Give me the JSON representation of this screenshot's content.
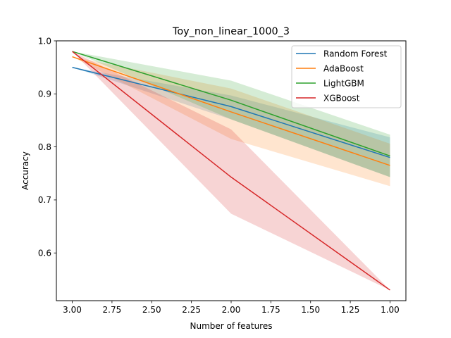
{
  "chart_data": {
    "type": "line",
    "title": "Toy_non_linear_1000_3",
    "xlabel": "Number of features",
    "ylabel": "Accuracy",
    "x": [
      3,
      2,
      1
    ],
    "xlim": [
      3.1,
      0.9
    ],
    "ylim": [
      0.51,
      1.0
    ],
    "xticks": [
      3.0,
      2.75,
      2.5,
      2.25,
      2.0,
      1.75,
      1.5,
      1.25,
      1.0
    ],
    "xtick_labels": [
      "3.00",
      "2.75",
      "2.50",
      "2.25",
      "2.00",
      "1.75",
      "1.50",
      "1.25",
      "1.00"
    ],
    "yticks": [
      0.6,
      0.7,
      0.8,
      0.9,
      1.0
    ],
    "ytick_labels": [
      "0.6",
      "0.7",
      "0.8",
      "0.9",
      "1.0"
    ],
    "legend_position": "top-right",
    "grid": false,
    "series": [
      {
        "name": "Random Forest",
        "color": "#1f77b4",
        "values": [
          0.95,
          0.876,
          0.78
        ],
        "lower": [
          0.95,
          0.852,
          0.743
        ],
        "upper": [
          0.95,
          0.897,
          0.818
        ]
      },
      {
        "name": "AdaBoost",
        "color": "#ff7f0e",
        "values": [
          0.97,
          0.866,
          0.765
        ],
        "lower": [
          0.97,
          0.815,
          0.726
        ],
        "upper": [
          0.97,
          0.91,
          0.806
        ]
      },
      {
        "name": "LightGBM",
        "color": "#2ca02c",
        "values": [
          0.98,
          0.888,
          0.783
        ],
        "lower": [
          0.98,
          0.852,
          0.743
        ],
        "upper": [
          0.98,
          0.925,
          0.823
        ]
      },
      {
        "name": "XGBoost",
        "color": "#d62728",
        "values": [
          0.98,
          0.743,
          0.53
        ],
        "lower": [
          0.98,
          0.674,
          0.53
        ],
        "upper": [
          0.98,
          0.833,
          0.53
        ]
      }
    ]
  }
}
